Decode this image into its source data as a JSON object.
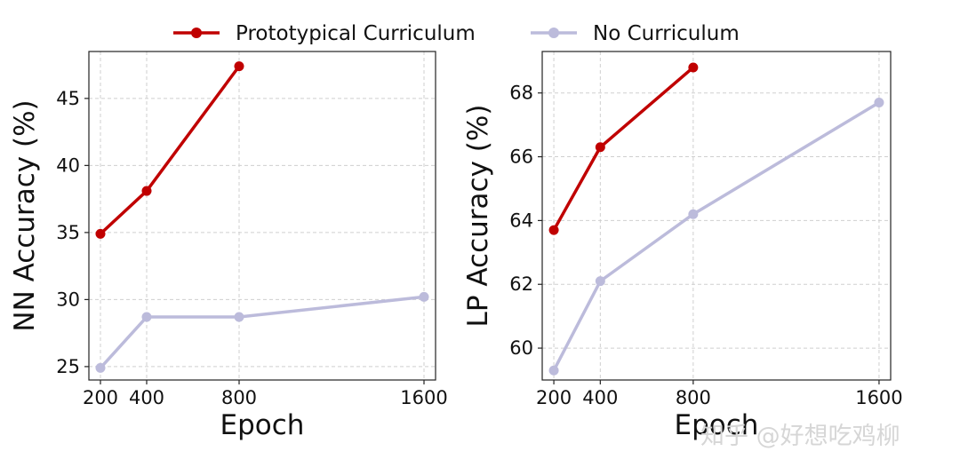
{
  "legend": {
    "items": [
      {
        "label": "Prototypical Curriculum",
        "color": "#c00000"
      },
      {
        "label": "No Curriculum",
        "color": "#bcbbdb"
      }
    ]
  },
  "watermark": "知乎 @好想吃鸡柳",
  "chart_data": [
    {
      "type": "line",
      "xlabel": "Epoch",
      "ylabel": "NN Accuracy (%)",
      "xticks": [
        200,
        400,
        800,
        1600
      ],
      "yticks": [
        25,
        30,
        35,
        40,
        45
      ],
      "xlim": [
        150,
        1650
      ],
      "ylim": [
        24,
        48.5
      ],
      "grid": true,
      "series": [
        {
          "name": "Prototypical Curriculum",
          "color": "#c00000",
          "x": [
            200,
            400,
            800
          ],
          "y": [
            34.9,
            38.1,
            47.4
          ]
        },
        {
          "name": "No Curriculum",
          "color": "#bcbbdb",
          "x": [
            200,
            400,
            800,
            1600
          ],
          "y": [
            24.9,
            28.7,
            28.7,
            30.2
          ]
        }
      ]
    },
    {
      "type": "line",
      "xlabel": "Epoch",
      "ylabel": "LP Accuracy (%)",
      "xticks": [
        200,
        400,
        800,
        1600
      ],
      "yticks": [
        60,
        62,
        64,
        66,
        68
      ],
      "xlim": [
        150,
        1650
      ],
      "ylim": [
        59,
        69.3
      ],
      "grid": true,
      "series": [
        {
          "name": "Prototypical Curriculum",
          "color": "#c00000",
          "x": [
            200,
            400,
            800
          ],
          "y": [
            63.7,
            66.3,
            68.8
          ]
        },
        {
          "name": "No Curriculum",
          "color": "#bcbbdb",
          "x": [
            200,
            400,
            800,
            1600
          ],
          "y": [
            59.3,
            62.1,
            64.2,
            67.7
          ]
        }
      ]
    }
  ]
}
